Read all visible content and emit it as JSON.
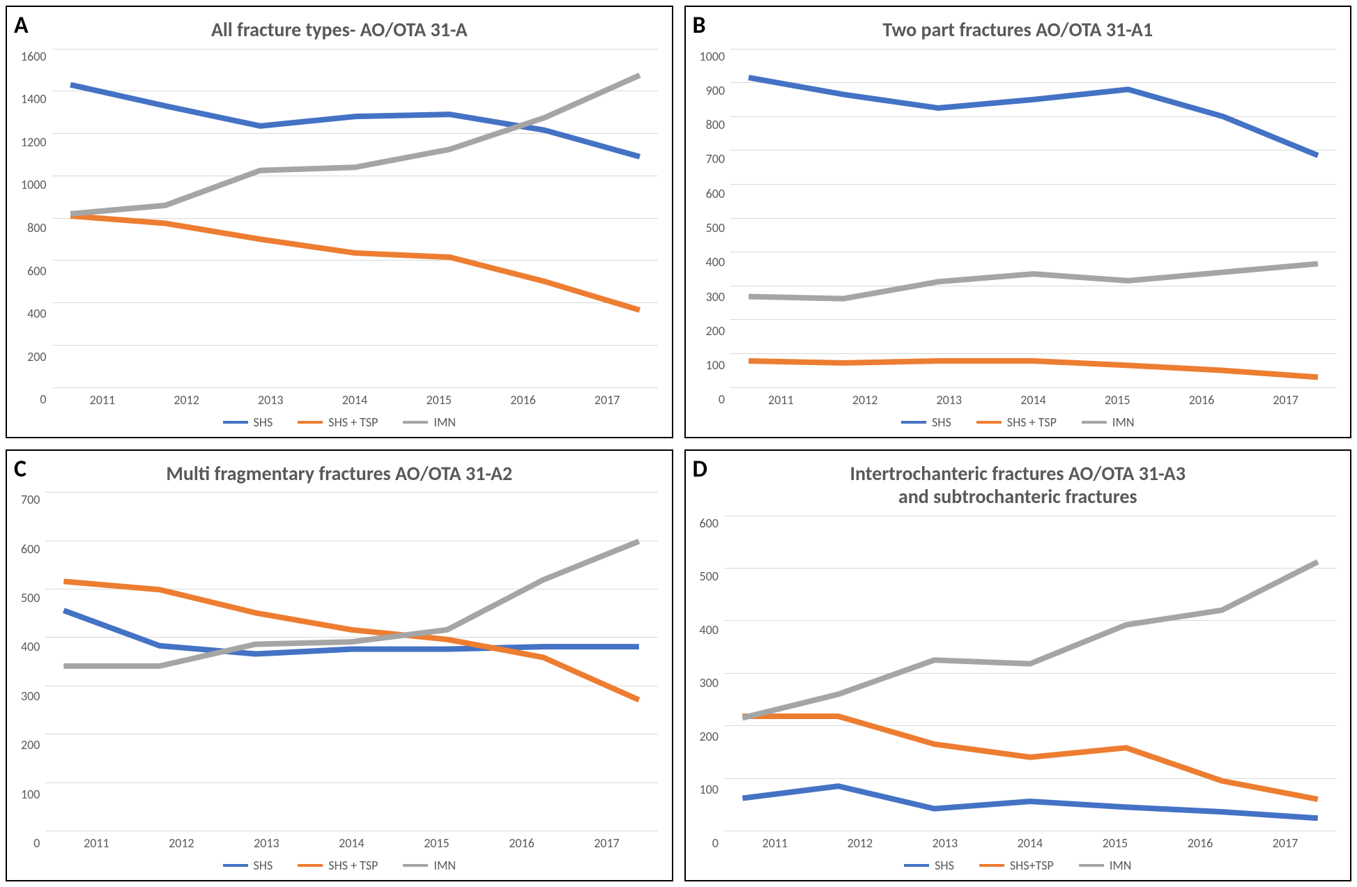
{
  "panels": {
    "A": {
      "letter": "A",
      "title": "All fracture types- AO/OTA 31-A",
      "type": "line",
      "categories": [
        "2011",
        "2012",
        "2013",
        "2014",
        "2015",
        "2016",
        "2017"
      ],
      "ylim": [
        0,
        1600
      ],
      "ytick_step": 200,
      "series": [
        {
          "name": "SHS",
          "color": "#4472c4",
          "values": [
            1430,
            1330,
            1235,
            1280,
            1290,
            1215,
            1090
          ]
        },
        {
          "name": "SHS + TSP",
          "color": "#ed7d31",
          "values": [
            810,
            775,
            700,
            635,
            615,
            500,
            365
          ]
        },
        {
          "name": "IMN",
          "color": "#a5a5a5",
          "values": [
            820,
            860,
            1025,
            1040,
            1125,
            1275,
            1475
          ]
        }
      ],
      "grid_color": "#d9d9d9",
      "background_color": "#ffffff",
      "title_fontsize": 28,
      "label_fontsize": 18,
      "line_width": 4
    },
    "B": {
      "letter": "B",
      "title": "Two part fractures AO/OTA 31-A1",
      "type": "line",
      "categories": [
        "2011",
        "2012",
        "2013",
        "2014",
        "2015",
        "2016",
        "2017"
      ],
      "ylim": [
        0,
        1000
      ],
      "ytick_step": 100,
      "series": [
        {
          "name": "SHS",
          "color": "#4472c4",
          "values": [
            915,
            865,
            825,
            850,
            880,
            800,
            685
          ]
        },
        {
          "name": "SHS + TSP",
          "color": "#ed7d31",
          "values": [
            78,
            72,
            78,
            78,
            65,
            50,
            30
          ]
        },
        {
          "name": "IMN",
          "color": "#a5a5a5",
          "values": [
            268,
            262,
            312,
            335,
            315,
            340,
            365
          ]
        }
      ],
      "grid_color": "#d9d9d9",
      "background_color": "#ffffff",
      "title_fontsize": 28,
      "label_fontsize": 18,
      "line_width": 4
    },
    "C": {
      "letter": "C",
      "title": "Multi fragmentary fractures AO/OTA 31-A2",
      "type": "line",
      "categories": [
        "2011",
        "2012",
        "2013",
        "2014",
        "2015",
        "2016",
        "2017"
      ],
      "ylim": [
        0,
        700
      ],
      "ytick_step": 100,
      "series": [
        {
          "name": "SHS",
          "color": "#4472c4",
          "values": [
            455,
            382,
            365,
            375,
            375,
            380,
            380
          ]
        },
        {
          "name": "SHS + TSP",
          "color": "#ed7d31",
          "values": [
            515,
            498,
            450,
            415,
            395,
            358,
            270
          ]
        },
        {
          "name": "IMN",
          "color": "#a5a5a5",
          "values": [
            340,
            340,
            385,
            390,
            415,
            518,
            598
          ]
        }
      ],
      "grid_color": "#d9d9d9",
      "background_color": "#ffffff",
      "title_fontsize": 28,
      "label_fontsize": 18,
      "line_width": 4
    },
    "D": {
      "letter": "D",
      "title": "Intertrochanteric fractures AO/OTA 31-A3\nand subtrochanteric fractures",
      "type": "line",
      "categories": [
        "2011",
        "2012",
        "2013",
        "2014",
        "2015",
        "2016",
        "2017"
      ],
      "ylim": [
        0,
        600
      ],
      "ytick_step": 100,
      "series": [
        {
          "name": "SHS",
          "color": "#4472c4",
          "values": [
            62,
            85,
            42,
            56,
            45,
            36,
            24
          ]
        },
        {
          "name": "SHS+TSP",
          "color": "#ed7d31",
          "values": [
            218,
            218,
            165,
            140,
            158,
            95,
            60
          ]
        },
        {
          "name": "IMN",
          "color": "#a5a5a5",
          "values": [
            215,
            260,
            325,
            318,
            392,
            420,
            512
          ]
        }
      ],
      "grid_color": "#d9d9d9",
      "background_color": "#ffffff",
      "title_fontsize": 28,
      "label_fontsize": 18,
      "line_width": 4
    }
  }
}
